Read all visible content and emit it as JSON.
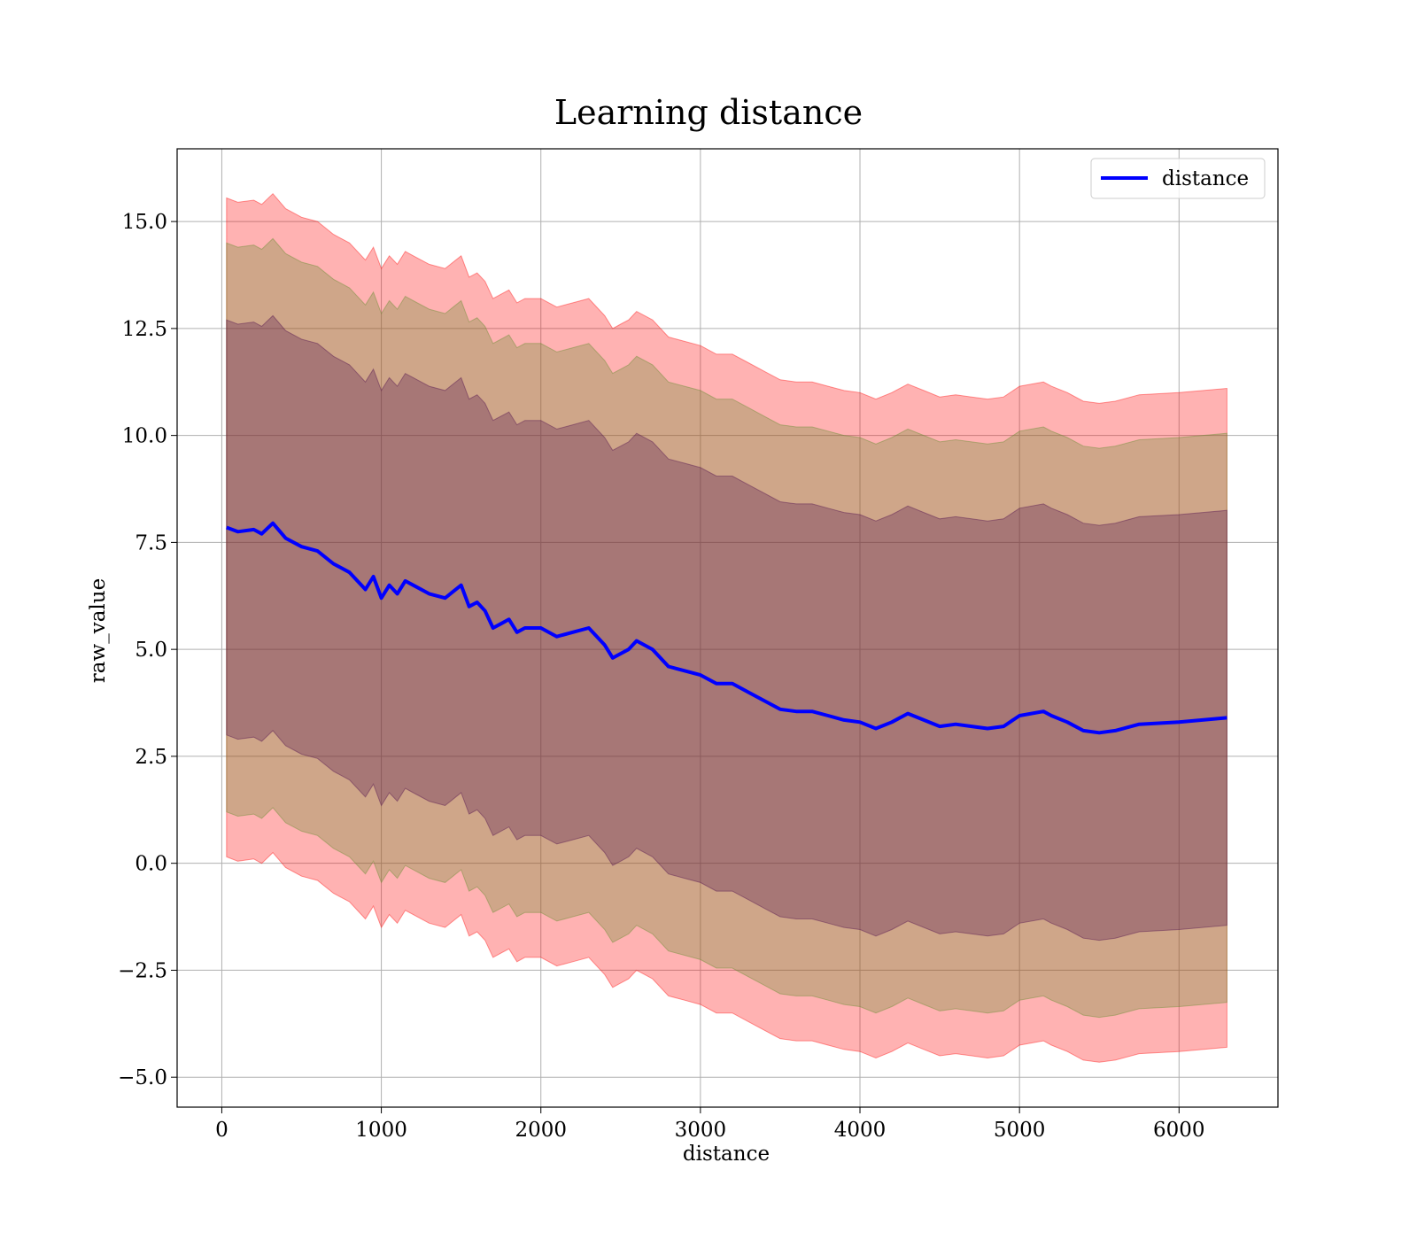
{
  "chart_data": {
    "type": "line",
    "title": "Learning distance",
    "xlabel": "distance",
    "ylabel": "raw_value",
    "xlim": [
      -280,
      6620
    ],
    "ylim": [
      -5.7,
      16.7
    ],
    "xticks": [
      0,
      1000,
      2000,
      3000,
      4000,
      5000,
      6000
    ],
    "yticks": [
      -5.0,
      -2.5,
      0.0,
      2.5,
      5.0,
      7.5,
      10.0,
      12.5,
      15.0
    ],
    "grid": true,
    "legend_position": "top-right",
    "x": [
      30,
      100,
      200,
      250,
      320,
      400,
      500,
      600,
      700,
      800,
      900,
      950,
      1000,
      1050,
      1100,
      1150,
      1200,
      1300,
      1400,
      1500,
      1550,
      1600,
      1650,
      1700,
      1750,
      1800,
      1850,
      1900,
      2000,
      2100,
      2200,
      2300,
      2400,
      2450,
      2500,
      2550,
      2600,
      2700,
      2800,
      2900,
      3000,
      3100,
      3200,
      3300,
      3400,
      3500,
      3600,
      3700,
      3800,
      3900,
      4000,
      4100,
      4200,
      4300,
      4400,
      4500,
      4600,
      4700,
      4800,
      4900,
      5000,
      5150,
      5200,
      5300,
      5400,
      5500,
      5600,
      5750,
      6000,
      6300
    ],
    "series": [
      {
        "name": "distance",
        "color": "#0000ff",
        "values": [
          7.85,
          7.75,
          7.8,
          7.7,
          7.95,
          7.6,
          7.4,
          7.3,
          7.0,
          6.8,
          6.4,
          6.7,
          6.2,
          6.5,
          6.3,
          6.6,
          6.5,
          6.3,
          6.2,
          6.5,
          6.0,
          6.1,
          5.9,
          5.5,
          5.6,
          5.7,
          5.4,
          5.5,
          5.5,
          5.3,
          5.4,
          5.5,
          5.1,
          4.8,
          4.9,
          5.0,
          5.2,
          5.0,
          4.6,
          4.5,
          4.4,
          4.2,
          4.2,
          4.0,
          3.8,
          3.6,
          3.55,
          3.55,
          3.45,
          3.35,
          3.3,
          3.15,
          3.3,
          3.5,
          3.35,
          3.2,
          3.25,
          3.2,
          3.15,
          3.2,
          3.45,
          3.55,
          3.45,
          3.3,
          3.1,
          3.05,
          3.1,
          3.25,
          3.3,
          3.4
        ]
      }
    ],
    "bands": [
      {
        "sigma": 3,
        "color": "#ff0000",
        "opacity": 0.3
      },
      {
        "sigma": 2,
        "color": "#5f8b2b",
        "opacity": 0.3
      },
      {
        "sigma": 1,
        "color": "#4b0a4b",
        "opacity": 0.3
      }
    ],
    "band_half_width_1sigma": 4.85
  }
}
